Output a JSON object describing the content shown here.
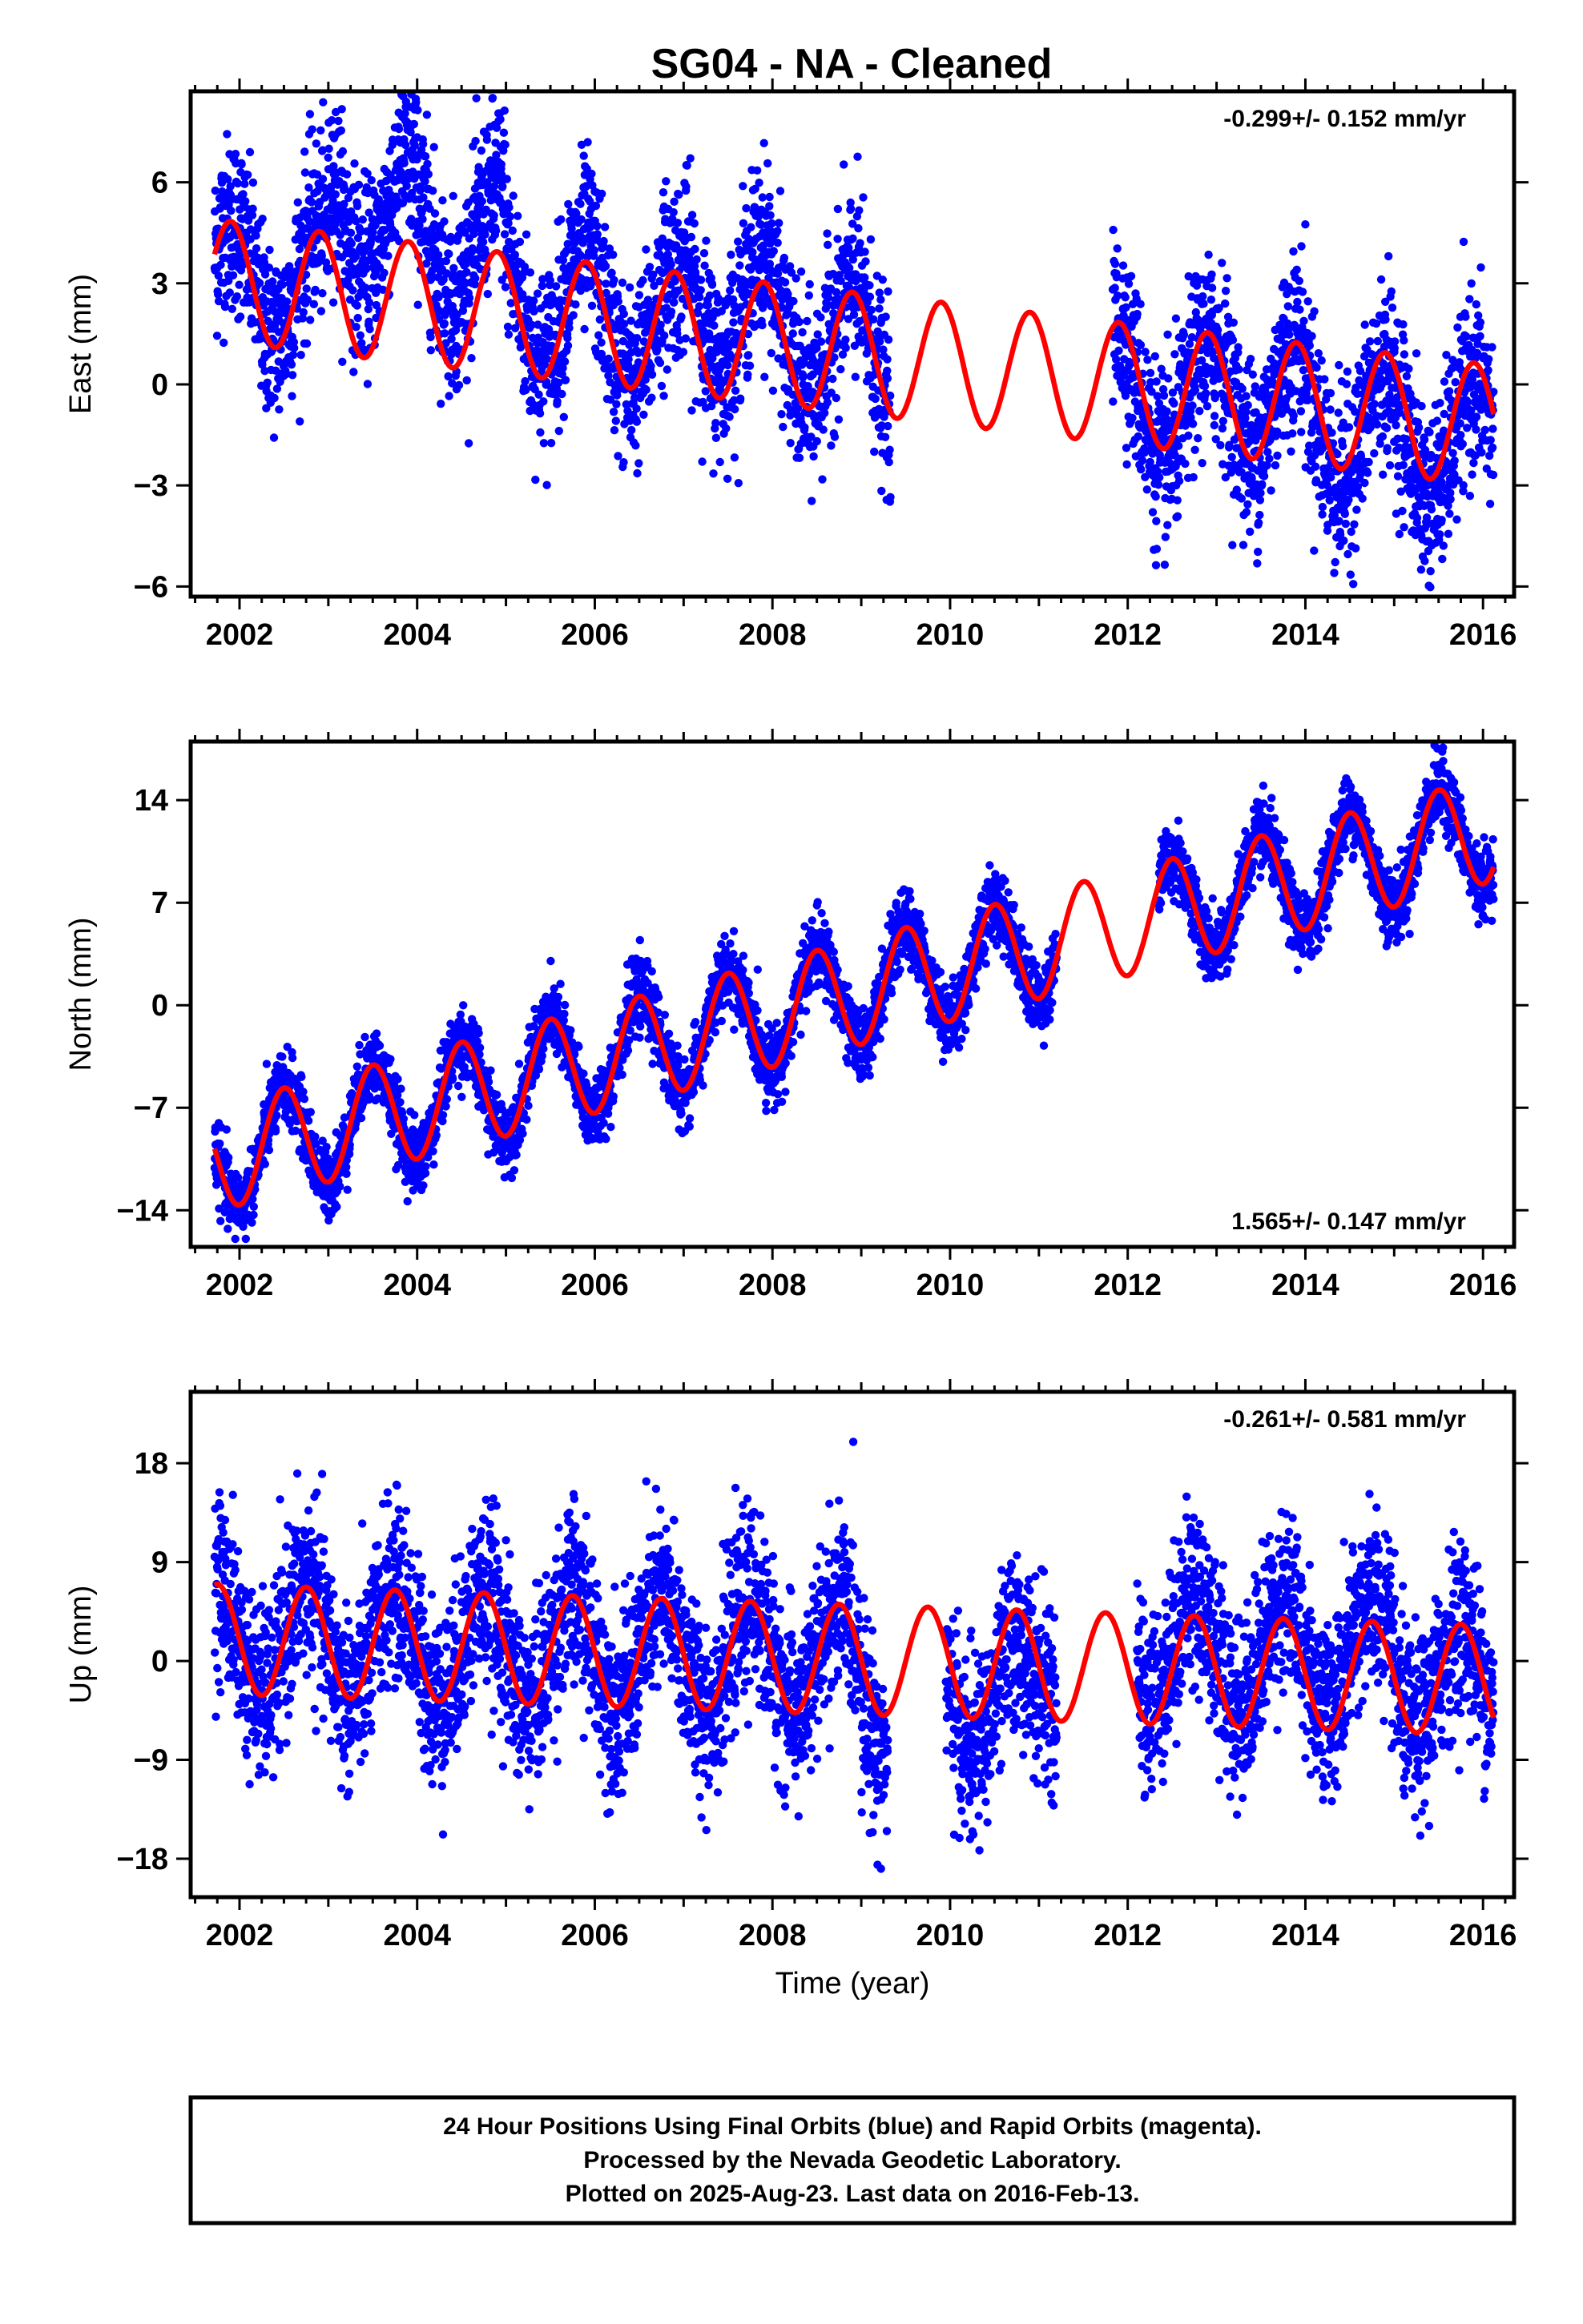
{
  "title": "SG04  - NA - Cleaned",
  "colors": {
    "points": "#0000ff",
    "fit": "#ff0000",
    "frame": "#000000"
  },
  "chart_data": [
    {
      "type": "scatter",
      "ylabel": "East (mm)",
      "xlabel": "",
      "xlim": [
        2001.45,
        2016.35
      ],
      "ylim": [
        -6.3,
        8.7
      ],
      "xticks": [
        2002,
        2004,
        2006,
        2008,
        2010,
        2012,
        2014,
        2016
      ],
      "yticks": [
        -6,
        -3,
        0,
        3,
        6
      ],
      "ytick_labels": [
        "−6",
        "−3",
        "0",
        "3",
        "6"
      ],
      "rate_label": "-0.299+/- 0.152 mm/yr",
      "rate_position": "top-right",
      "data_span": [
        2001.72,
        2016.12
      ],
      "gaps": [
        [
          2009.33,
          2011.83
        ]
      ],
      "series": [
        {
          "kind": "points",
          "trend": {
            "offset": 3.1,
            "slope": -0.3,
            "t0": 2001.7
          },
          "seasonal": {
            "amplitude": 1.8,
            "peak_phase": 0.9
          },
          "scatter_sd": 1.3,
          "drift_by_year": {
            "2002": 0.3,
            "2003": 2.5,
            "2004": 2.0,
            "2005": 0.5,
            "2006": 0.2,
            "2007": 1.0,
            "2008": 0.3,
            "2009": 0,
            "2012": -0.4,
            "2013": 0.2,
            "2014": -0.5,
            "2015": -0.6,
            "2016": -0.5
          }
        },
        {
          "kind": "fit",
          "trend": {
            "offset": 3.1,
            "slope": -0.3,
            "t0": 2001.7
          },
          "seasonal": {
            "amplitude": 1.8,
            "peak_phase": 0.9
          }
        }
      ]
    },
    {
      "type": "scatter",
      "ylabel": "North (mm)",
      "xlabel": "",
      "xlim": [
        2001.45,
        2016.35
      ],
      "ylim": [
        -16.5,
        18.0
      ],
      "xticks": [
        2002,
        2004,
        2006,
        2008,
        2010,
        2012,
        2014,
        2016
      ],
      "yticks": [
        -14,
        -7,
        0,
        7,
        14
      ],
      "ytick_labels": [
        "−14",
        "−7",
        "0",
        "7",
        "14"
      ],
      "rate_label": "1.565+/- 0.147 mm/yr",
      "rate_position": "bottom-right",
      "data_span": [
        2001.72,
        2016.12
      ],
      "gaps": [
        [
          2011.2,
          2012.35
        ]
      ],
      "series": [
        {
          "kind": "points",
          "trend": {
            "offset": -10.5,
            "slope": 1.565,
            "t0": 2001.7
          },
          "seasonal": {
            "amplitude": 3.6,
            "peak_phase": 0.5
          },
          "scatter_sd": 1.2,
          "drift_by_year": {}
        },
        {
          "kind": "fit",
          "trend": {
            "offset": -10.5,
            "slope": 1.565,
            "t0": 2001.7
          },
          "seasonal": {
            "amplitude": 3.6,
            "peak_phase": 0.5
          }
        }
      ]
    },
    {
      "type": "scatter",
      "ylabel": "Up (mm)",
      "xlabel": "Time (year)",
      "xlim": [
        2001.45,
        2016.35
      ],
      "ylim": [
        -21.5,
        24.5
      ],
      "xticks": [
        2002,
        2004,
        2006,
        2008,
        2010,
        2012,
        2014,
        2016
      ],
      "yticks": [
        -18,
        -9,
        0,
        9,
        18
      ],
      "ytick_labels": [
        "−18",
        "−9",
        "0",
        "9",
        "18"
      ],
      "rate_label": "-0.261+/- 0.581 mm/yr",
      "rate_position": "top-right",
      "data_span": [
        2001.72,
        2016.12
      ],
      "gaps": [
        [
          2009.3,
          2009.95
        ],
        [
          2011.2,
          2012.1
        ]
      ],
      "series": [
        {
          "kind": "points",
          "trend": {
            "offset": 2.0,
            "slope": -0.26,
            "t0": 2001.7
          },
          "seasonal": {
            "amplitude": 5.0,
            "peak_phase": 0.75
          },
          "scatter_sd": 4.0,
          "drift_by_year": {
            "2009": -3,
            "2010": -3,
            "2012": 2,
            "2013": 2,
            "2014": 2
          }
        },
        {
          "kind": "fit",
          "trend": {
            "offset": 2.0,
            "slope": -0.26,
            "t0": 2001.7
          },
          "seasonal": {
            "amplitude": 5.0,
            "peak_phase": 0.75
          }
        }
      ]
    }
  ],
  "footer": {
    "line1": "24 Hour Positions Using Final Orbits (blue) and Rapid Orbits (magenta).",
    "line2": "Processed by the Nevada Geodetic Laboratory.",
    "line3": "Plotted on 2025-Aug-23. Last data on 2016-Feb-13."
  }
}
